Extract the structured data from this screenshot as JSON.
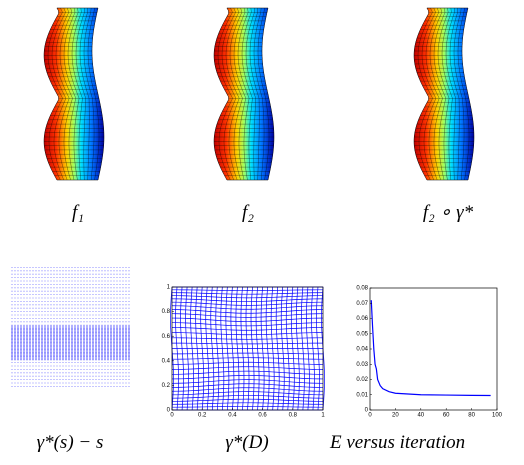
{
  "captions": [
    "f₁",
    "f₂",
    "f₂ ∘ γ*",
    "γ*(s) − s",
    "γ*(D)",
    "E versus iteration"
  ],
  "chart_data": [
    {
      "type": "grid",
      "xlim": [
        0,
        1
      ],
      "ylim": [
        0,
        1
      ],
      "xticks": [
        0,
        0.2,
        0.4,
        0.6,
        0.8,
        1
      ],
      "yticks": [
        0,
        0.2,
        0.4,
        0.6,
        0.8,
        1
      ],
      "color": "#0000ff"
    },
    {
      "type": "line",
      "x": [
        1,
        2,
        3,
        4,
        5,
        6,
        8,
        10,
        15,
        20,
        30,
        40,
        60,
        80,
        95
      ],
      "values": [
        0.072,
        0.055,
        0.04,
        0.03,
        0.027,
        0.02,
        0.016,
        0.014,
        0.012,
        0.011,
        0.0105,
        0.01,
        0.0098,
        0.0096,
        0.0095
      ],
      "color": "#0000ff",
      "xlim": [
        0,
        100
      ],
      "ylim": [
        0,
        0.08
      ],
      "xticks": [
        0,
        20,
        40,
        60,
        80,
        100
      ],
      "yticks": [
        0,
        0.01,
        0.02,
        0.03,
        0.04,
        0.05,
        0.06,
        0.07,
        0.08
      ]
    }
  ]
}
